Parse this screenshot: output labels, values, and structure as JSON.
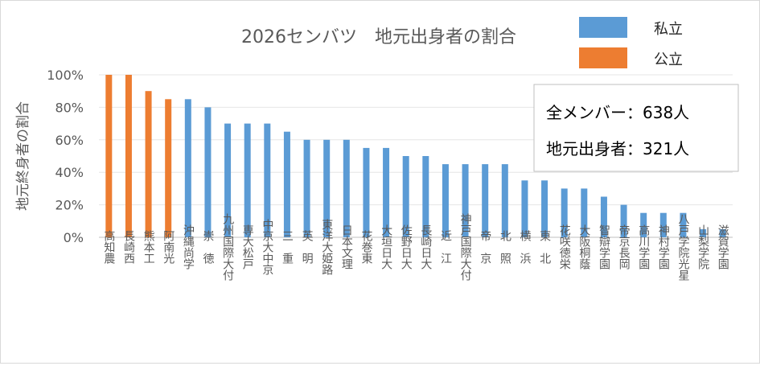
{
  "chart_data": {
    "type": "bar",
    "title": "2026センバツ　地元出身者の割合",
    "xlabel": "",
    "ylabel": "地元終身者の割合",
    "ylim": [
      0,
      100
    ],
    "yticks": [
      "0%",
      "20%",
      "40%",
      "60%",
      "80%",
      "100%"
    ],
    "categories": [
      "高知農",
      "長崎西",
      "熊本工",
      "阿南光",
      "沖縄尚学",
      "崇　徳",
      "九州国際大付",
      "専大松戸",
      "中京大中京",
      "三　重",
      "英　明",
      "東洋大姫路",
      "日本文理",
      "花巻東",
      "大垣日大",
      "佐野日大",
      "長崎日大",
      "近　江",
      "神戸国際大付",
      "帝　京",
      "北　照",
      "横　浜",
      "東　北",
      "花咲徳栄",
      "大阪桐蔭",
      "智辯学園",
      "帝京長岡",
      "高川学園",
      "神村学園",
      "八戸学院光星",
      "山梨学院",
      "滋賀学園"
    ],
    "values": [
      100,
      100,
      90,
      85,
      85,
      80,
      70,
      70,
      70,
      65,
      60,
      60,
      60,
      55,
      55,
      50,
      50,
      45,
      45,
      45,
      45,
      35,
      35,
      30,
      30,
      25,
      20,
      15,
      15,
      15,
      5,
      5
    ],
    "types": [
      "公立",
      "公立",
      "公立",
      "公立",
      "私立",
      "私立",
      "私立",
      "私立",
      "私立",
      "私立",
      "私立",
      "私立",
      "私立",
      "私立",
      "私立",
      "私立",
      "私立",
      "私立",
      "私立",
      "私立",
      "私立",
      "私立",
      "私立",
      "私立",
      "私立",
      "私立",
      "私立",
      "私立",
      "私立",
      "私立",
      "私立",
      "私立"
    ],
    "legend": [
      {
        "label": "私立",
        "color": "#5b9bd5"
      },
      {
        "label": "公立",
        "color": "#ed7d31"
      }
    ],
    "annotation": {
      "line1": "全メンバー：638人",
      "line2": "地元出身者：321人"
    }
  }
}
